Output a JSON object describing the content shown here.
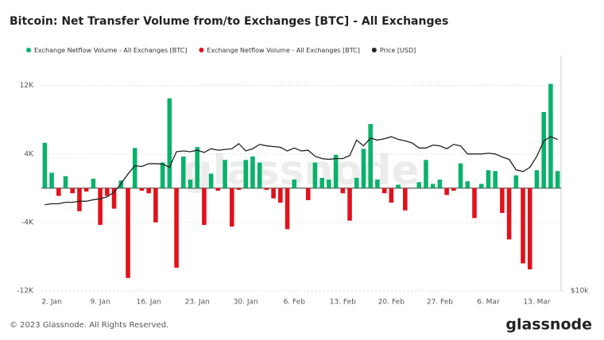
{
  "chart_data": {
    "type": "bar",
    "title": "Bitcoin: Net Transfer Volume from/to Exchanges [BTC] - All Exchanges",
    "watermark": "glassnode",
    "footer": "© 2023 Glassnode. All Rights Reserved.",
    "brand": "glassnode",
    "legend": "top-left",
    "grid": true,
    "categories": [
      null,
      "2. Jan",
      null,
      null,
      null,
      null,
      null,
      null,
      "9. Jan",
      null,
      null,
      null,
      null,
      null,
      null,
      "16. Jan",
      null,
      null,
      null,
      null,
      null,
      null,
      "23. Jan",
      null,
      null,
      null,
      null,
      null,
      null,
      "30. Jan",
      null,
      null,
      null,
      null,
      null,
      null,
      "6. Feb",
      null,
      null,
      null,
      null,
      null,
      null,
      "13. Feb",
      null,
      null,
      null,
      null,
      null,
      null,
      "20. Feb",
      null,
      null,
      null,
      null,
      null,
      null,
      "27. Feb",
      null,
      null,
      null,
      null,
      null,
      null,
      "6. Mar",
      null,
      null,
      null,
      null,
      null,
      null,
      "13. Mar",
      null,
      null,
      null
    ],
    "series": [
      {
        "name": "Exchange Netflow Volume - All Exchanges [BTC]",
        "color": "#0ab26b",
        "type": "bar",
        "values": [
          5300,
          1800,
          null,
          1400,
          null,
          null,
          null,
          1100,
          null,
          null,
          null,
          900,
          null,
          4700,
          null,
          null,
          null,
          3000,
          10500,
          null,
          3700,
          1000,
          4800,
          null,
          1700,
          null,
          3300,
          null,
          null,
          3300,
          3700,
          3000,
          null,
          null,
          null,
          null,
          1000,
          null,
          null,
          3000,
          1200,
          1000,
          3900,
          null,
          null,
          1200,
          4600,
          7500,
          1000,
          null,
          null,
          400,
          null,
          null,
          700,
          3300,
          500,
          1000,
          null,
          null,
          2900,
          800,
          null,
          500,
          2100,
          2000,
          null,
          null,
          1500,
          null,
          null,
          2100,
          8900,
          12200,
          2000
        ]
      },
      {
        "name": "Exchange Netflow Volume - All Exchanges [BTC]",
        "color": "#e0121b",
        "type": "bar",
        "values": [
          null,
          null,
          -900,
          null,
          -600,
          -2700,
          -400,
          null,
          -4300,
          -900,
          -2400,
          null,
          -10500,
          null,
          -300,
          -600,
          -4000,
          null,
          null,
          -9300,
          null,
          null,
          null,
          -4300,
          null,
          -300,
          null,
          -4500,
          -200,
          null,
          null,
          null,
          -200,
          -1200,
          -1700,
          -4800,
          null,
          null,
          -1400,
          null,
          null,
          null,
          null,
          -600,
          -3800,
          null,
          null,
          null,
          null,
          -600,
          -1700,
          null,
          -2600,
          null,
          null,
          null,
          null,
          null,
          -800,
          -300,
          null,
          null,
          -3500,
          null,
          null,
          null,
          -2900,
          -6000,
          null,
          -8800,
          -9500,
          null,
          null,
          null,
          null
        ]
      },
      {
        "name": "Price [USD]",
        "color": "#222222",
        "type": "line",
        "axis": "y2",
        "values": [
          16600,
          16700,
          16700,
          16850,
          16850,
          16950,
          16950,
          17100,
          17200,
          17400,
          17900,
          18800,
          19900,
          20900,
          20800,
          21150,
          21150,
          21100,
          20700,
          22700,
          22800,
          22700,
          22900,
          22600,
          23100,
          22900,
          23000,
          23100,
          23800,
          22800,
          23100,
          23700,
          23500,
          23400,
          23300,
          22800,
          23200,
          22800,
          22900,
          22100,
          21800,
          21700,
          21800,
          21800,
          22200,
          24300,
          23500,
          24600,
          24300,
          24500,
          24800,
          24400,
          24200,
          23900,
          23200,
          23200,
          23600,
          23500,
          23100,
          23700,
          23500,
          22400,
          22400,
          22400,
          22500,
          22400,
          22000,
          21700,
          20400,
          20200,
          20700,
          22100,
          24200,
          24800,
          24400
        ]
      }
    ],
    "ylim": [
      -12000,
      15500
    ],
    "yticks": [
      {
        "value": -12000,
        "label": "-12K"
      },
      {
        "value": -4000,
        "label": "-4K"
      },
      {
        "value": 4000,
        "label": "4K"
      },
      {
        "value": 12000,
        "label": "12K"
      }
    ],
    "y2lim": [
      10000,
      40000
    ],
    "y2scale": "log",
    "y2ticks": [
      {
        "value": 10000,
        "label": "$10k"
      }
    ]
  }
}
